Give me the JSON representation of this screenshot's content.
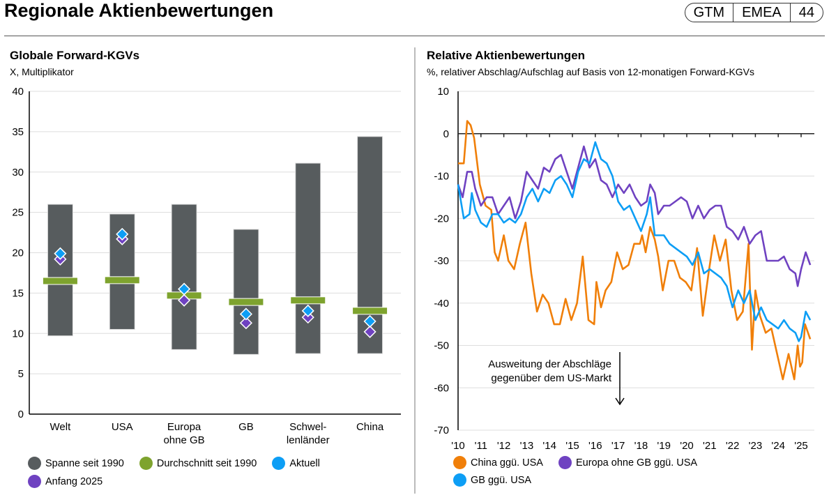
{
  "header": {
    "title": "Regionale Aktienbewertungen",
    "badge": [
      "GTM",
      "EMEA",
      "44"
    ]
  },
  "colors": {
    "range": "#575c5e",
    "average": "#7ea32e",
    "current": "#0d9ef5",
    "start": "#6f42c1",
    "china": "#f07f09",
    "europe": "#6f42c1",
    "gb": "#0d9ef5"
  },
  "chart_data": [
    {
      "type": "bar",
      "title": "Globale Forward-KGVs",
      "subtitle": "X, Multiplikator",
      "ylim": [
        0,
        40
      ],
      "yticks": [
        0,
        5,
        10,
        15,
        20,
        25,
        30,
        35,
        40
      ],
      "grid": true,
      "categories": [
        "Welt",
        "USA",
        "Europa\nohne GB",
        "GB",
        "Schwel-\nlenländer",
        "China"
      ],
      "series": [
        {
          "name": "Spanne seit 1990",
          "type": "range",
          "values": [
            [
              9.7,
              26.0
            ],
            [
              10.5,
              24.8
            ],
            [
              8.0,
              26.0
            ],
            [
              7.4,
              22.9
            ],
            [
              7.5,
              31.1
            ],
            [
              7.5,
              34.4
            ]
          ]
        },
        {
          "name": "Durchschnitt seit 1990",
          "type": "marker",
          "values": [
            16.5,
            16.6,
            14.7,
            13.9,
            14.1,
            12.8
          ]
        },
        {
          "name": "Aktuell",
          "type": "diamond",
          "values": [
            19.9,
            22.3,
            15.5,
            12.4,
            12.8,
            11.5
          ]
        },
        {
          "name": "Anfang 2025",
          "type": "diamond",
          "values": [
            19.2,
            21.7,
            14.1,
            11.3,
            12.0,
            10.2
          ]
        }
      ],
      "legend": "bottom"
    },
    {
      "type": "line",
      "title": "Relative Aktienbewertungen",
      "subtitle": "%, relativer Abschlag/Aufschlag auf Basis von 12-monatigen Forward-KGVs",
      "ylim": [
        -70,
        10
      ],
      "yticks": [
        10,
        0,
        -10,
        -20,
        -30,
        -40,
        -50,
        -60,
        -70
      ],
      "xlim": [
        2010,
        2025.6
      ],
      "xticks": [
        "'10",
        "'11",
        "'12",
        "'13",
        "'14",
        "'15",
        "'16",
        "'17",
        "'18",
        "'19",
        "'20",
        "'21",
        "'22",
        "'23",
        "'24",
        "'25"
      ],
      "grid": true,
      "annotation": "Ausweitung der Abschläge\ngegenüber dem US-Markt",
      "series": [
        {
          "name": "China ggü. USA",
          "color": "china",
          "points": [
            [
              2010.0,
              -7
            ],
            [
              2010.25,
              -7
            ],
            [
              2010.4,
              3
            ],
            [
              2010.55,
              2
            ],
            [
              2010.7,
              -1
            ],
            [
              2010.95,
              -12
            ],
            [
              2011.2,
              -17
            ],
            [
              2011.45,
              -18
            ],
            [
              2011.6,
              -28
            ],
            [
              2011.75,
              -30
            ],
            [
              2012.0,
              -24
            ],
            [
              2012.2,
              -30
            ],
            [
              2012.45,
              -32
            ],
            [
              2012.7,
              -26
            ],
            [
              2012.95,
              -21
            ],
            [
              2013.2,
              -33
            ],
            [
              2013.45,
              -42
            ],
            [
              2013.7,
              -38
            ],
            [
              2013.95,
              -40
            ],
            [
              2014.2,
              -45
            ],
            [
              2014.45,
              -45
            ],
            [
              2014.7,
              -39
            ],
            [
              2014.95,
              -44
            ],
            [
              2015.2,
              -40
            ],
            [
              2015.45,
              -29
            ],
            [
              2015.7,
              -44
            ],
            [
              2015.95,
              -45
            ],
            [
              2016.05,
              -35
            ],
            [
              2016.25,
              -41
            ],
            [
              2016.45,
              -37
            ],
            [
              2016.7,
              -35
            ],
            [
              2016.95,
              -28
            ],
            [
              2017.2,
              -32
            ],
            [
              2017.45,
              -31
            ],
            [
              2017.7,
              -26
            ],
            [
              2017.95,
              -26
            ],
            [
              2018.05,
              -24
            ],
            [
              2018.2,
              -28
            ],
            [
              2018.4,
              -22
            ],
            [
              2018.6,
              -25
            ],
            [
              2018.75,
              -29
            ],
            [
              2018.95,
              -37
            ],
            [
              2019.2,
              -30
            ],
            [
              2019.45,
              -30
            ],
            [
              2019.7,
              -34
            ],
            [
              2019.95,
              -35
            ],
            [
              2020.2,
              -37
            ],
            [
              2020.45,
              -27
            ],
            [
              2020.7,
              -43
            ],
            [
              2020.95,
              -33
            ],
            [
              2021.2,
              -24
            ],
            [
              2021.45,
              -30
            ],
            [
              2021.7,
              -25
            ],
            [
              2021.95,
              -37
            ],
            [
              2022.2,
              -44
            ],
            [
              2022.45,
              -42
            ],
            [
              2022.7,
              -26
            ],
            [
              2022.85,
              -51
            ],
            [
              2023.0,
              -37
            ],
            [
              2023.2,
              -43
            ],
            [
              2023.45,
              -47
            ],
            [
              2023.7,
              -46
            ],
            [
              2023.95,
              -52
            ],
            [
              2024.2,
              -58
            ],
            [
              2024.45,
              -52
            ],
            [
              2024.7,
              -58
            ],
            [
              2024.85,
              -50
            ],
            [
              2024.95,
              -55
            ],
            [
              2025.05,
              -54
            ],
            [
              2025.17,
              -45
            ],
            [
              2025.4,
              -48.5
            ]
          ]
        },
        {
          "name": "Europa ohne GB ggü. USA",
          "color": "europe",
          "points": [
            [
              2010.0,
              -12
            ],
            [
              2010.2,
              -15
            ],
            [
              2010.4,
              -9
            ],
            [
              2010.6,
              -9
            ],
            [
              2010.75,
              -13
            ],
            [
              2011.0,
              -17
            ],
            [
              2011.25,
              -15
            ],
            [
              2011.5,
              -15
            ],
            [
              2011.75,
              -19
            ],
            [
              2012.0,
              -17
            ],
            [
              2012.25,
              -15
            ],
            [
              2012.5,
              -20
            ],
            [
              2012.75,
              -16
            ],
            [
              2013.0,
              -9
            ],
            [
              2013.25,
              -11
            ],
            [
              2013.5,
              -13
            ],
            [
              2013.75,
              -8
            ],
            [
              2014.0,
              -9
            ],
            [
              2014.25,
              -6
            ],
            [
              2014.5,
              -5
            ],
            [
              2014.75,
              -9
            ],
            [
              2015.0,
              -13
            ],
            [
              2015.25,
              -8
            ],
            [
              2015.5,
              -3
            ],
            [
              2015.75,
              -8
            ],
            [
              2016.0,
              -6
            ],
            [
              2016.25,
              -11
            ],
            [
              2016.5,
              -12
            ],
            [
              2016.75,
              -15
            ],
            [
              2017.0,
              -12
            ],
            [
              2017.25,
              -14
            ],
            [
              2017.5,
              -12
            ],
            [
              2017.75,
              -15
            ],
            [
              2018.0,
              -17
            ],
            [
              2018.25,
              -16
            ],
            [
              2018.4,
              -12
            ],
            [
              2018.6,
              -14
            ],
            [
              2018.75,
              -19
            ],
            [
              2019.0,
              -17
            ],
            [
              2019.25,
              -17
            ],
            [
              2019.5,
              -16
            ],
            [
              2019.75,
              -15
            ],
            [
              2020.0,
              -16
            ],
            [
              2020.25,
              -20
            ],
            [
              2020.5,
              -17
            ],
            [
              2020.75,
              -20
            ],
            [
              2021.0,
              -18
            ],
            [
              2021.25,
              -17
            ],
            [
              2021.5,
              -17
            ],
            [
              2021.75,
              -22
            ],
            [
              2022.0,
              -23
            ],
            [
              2022.25,
              -25
            ],
            [
              2022.5,
              -22
            ],
            [
              2022.75,
              -26
            ],
            [
              2023.0,
              -24
            ],
            [
              2023.25,
              -23
            ],
            [
              2023.5,
              -30
            ],
            [
              2023.75,
              -30
            ],
            [
              2024.0,
              -30
            ],
            [
              2024.25,
              -29
            ],
            [
              2024.5,
              -32
            ],
            [
              2024.75,
              -33
            ],
            [
              2024.85,
              -36
            ],
            [
              2025.0,
              -32
            ],
            [
              2025.2,
              -28
            ],
            [
              2025.4,
              -31
            ]
          ]
        },
        {
          "name": "GB ggü. USA",
          "color": "gb",
          "points": [
            [
              2010.0,
              -12
            ],
            [
              2010.25,
              -20
            ],
            [
              2010.5,
              -19
            ],
            [
              2010.6,
              -14
            ],
            [
              2010.75,
              -18
            ],
            [
              2011.0,
              -21
            ],
            [
              2011.25,
              -22
            ],
            [
              2011.5,
              -19
            ],
            [
              2011.75,
              -19
            ],
            [
              2012.0,
              -21
            ],
            [
              2012.25,
              -20
            ],
            [
              2012.5,
              -21
            ],
            [
              2012.75,
              -19
            ],
            [
              2013.0,
              -15
            ],
            [
              2013.25,
              -13
            ],
            [
              2013.5,
              -16
            ],
            [
              2013.75,
              -13
            ],
            [
              2014.0,
              -14
            ],
            [
              2014.25,
              -11
            ],
            [
              2014.5,
              -10
            ],
            [
              2014.75,
              -12
            ],
            [
              2015.0,
              -15
            ],
            [
              2015.25,
              -9
            ],
            [
              2015.5,
              -6
            ],
            [
              2015.75,
              -7
            ],
            [
              2016.0,
              -2
            ],
            [
              2016.25,
              -6
            ],
            [
              2016.5,
              -7
            ],
            [
              2016.75,
              -10
            ],
            [
              2017.0,
              -16
            ],
            [
              2017.25,
              -18
            ],
            [
              2017.5,
              -17
            ],
            [
              2017.75,
              -20
            ],
            [
              2018.0,
              -23
            ],
            [
              2018.25,
              -19
            ],
            [
              2018.4,
              -15
            ],
            [
              2018.6,
              -24
            ],
            [
              2018.75,
              -24
            ],
            [
              2019.0,
              -24
            ],
            [
              2019.25,
              -26
            ],
            [
              2019.5,
              -27
            ],
            [
              2019.75,
              -28
            ],
            [
              2020.0,
              -29
            ],
            [
              2020.25,
              -31
            ],
            [
              2020.5,
              -28
            ],
            [
              2020.75,
              -33
            ],
            [
              2021.0,
              -32
            ],
            [
              2021.25,
              -33
            ],
            [
              2021.5,
              -34
            ],
            [
              2021.75,
              -36
            ],
            [
              2022.0,
              -41
            ],
            [
              2022.25,
              -37
            ],
            [
              2022.5,
              -40
            ],
            [
              2022.75,
              -37
            ],
            [
              2023.0,
              -44
            ],
            [
              2023.25,
              -41
            ],
            [
              2023.5,
              -44
            ],
            [
              2023.75,
              -45
            ],
            [
              2024.0,
              -46
            ],
            [
              2024.25,
              -44
            ],
            [
              2024.5,
              -46
            ],
            [
              2024.75,
              -47
            ],
            [
              2024.9,
              -49
            ],
            [
              2025.0,
              -48
            ],
            [
              2025.2,
              -42
            ],
            [
              2025.4,
              -44
            ]
          ]
        }
      ],
      "legend": "bottom"
    }
  ]
}
